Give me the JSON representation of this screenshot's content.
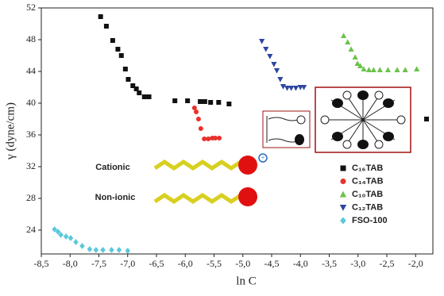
{
  "chart_data": {
    "type": "scatter",
    "xlabel": "ln C",
    "ylabel": "γ (dyne/cm)",
    "xlim": [
      -8.5,
      -1.7
    ],
    "ylim": [
      21,
      52
    ],
    "xticks": [
      {
        "value": -8.5,
        "label": "-8,5"
      },
      {
        "value": -8,
        "label": "-8,0"
      },
      {
        "value": -7.5,
        "label": "-7,5"
      },
      {
        "value": -7,
        "label": "-7,0"
      },
      {
        "value": -6.5,
        "label": "-6,5"
      },
      {
        "value": -6,
        "label": "-6,0"
      },
      {
        "value": -5.5,
        "label": "-5,5"
      },
      {
        "value": -5,
        "label": "-5,0"
      },
      {
        "value": -4.5,
        "label": "-4,5"
      },
      {
        "value": -4,
        "label": "-4,0"
      },
      {
        "value": -3.5,
        "label": "-3,5"
      },
      {
        "value": -3,
        "label": "-3,0"
      },
      {
        "value": -2.5,
        "label": "-2,5"
      },
      {
        "value": -2,
        "label": "-2,0"
      }
    ],
    "yticks": [
      24,
      28,
      32,
      36,
      40,
      44,
      48,
      52
    ],
    "annotations": [
      "Cationic",
      "Non-ionic"
    ],
    "series": [
      {
        "name": "C₁₆TAB",
        "color": "#111111",
        "marker": "square",
        "x": [
          -7.47,
          -7.37,
          -7.26,
          -7.17,
          -7.11,
          -7.04,
          -6.99,
          -6.91,
          -6.85,
          -6.8,
          -6.71,
          -6.63,
          -6.18,
          -5.96,
          -5.74,
          -5.66,
          -5.56,
          -5.42,
          -5.24,
          -1.81
        ],
        "values": [
          50.9,
          49.7,
          47.9,
          46.8,
          46.0,
          44.3,
          43.0,
          42.2,
          41.8,
          41.3,
          40.8,
          40.8,
          40.3,
          40.3,
          40.2,
          40.2,
          40.1,
          40.1,
          39.9,
          38.0
        ]
      },
      {
        "name": "C₁₄TAB",
        "color": "#e8322b",
        "marker": "circle",
        "x": [
          -5.84,
          -5.81,
          -5.77,
          -5.73,
          -5.67,
          -5.6,
          -5.53,
          -5.48,
          -5.41
        ],
        "values": [
          39.4,
          38.9,
          38.0,
          36.8,
          35.5,
          35.5,
          35.6,
          35.6,
          35.6
        ]
      },
      {
        "name": "C₁₀TAB",
        "color": "#6cc24a",
        "marker": "triangle",
        "x": [
          -3.25,
          -3.18,
          -3.12,
          -3.05,
          -3.01,
          -2.96,
          -2.9,
          -2.81,
          -2.73,
          -2.62,
          -2.48,
          -2.32,
          -2.18,
          -1.98
        ],
        "values": [
          48.5,
          47.7,
          46.8,
          45.8,
          45.0,
          44.7,
          44.3,
          44.2,
          44.2,
          44.2,
          44.2,
          44.2,
          44.2,
          44.3
        ]
      },
      {
        "name": "C₁₂TAB",
        "color": "#2c46a0",
        "marker": "triangle-down",
        "x": [
          -4.67,
          -4.6,
          -4.53,
          -4.46,
          -4.41,
          -4.35,
          -4.3,
          -4.23,
          -4.16,
          -4.08,
          -4.0,
          -3.94
        ],
        "values": [
          47.8,
          46.8,
          45.9,
          44.9,
          44.1,
          43.0,
          42.1,
          41.9,
          41.9,
          41.9,
          42.0,
          42.0
        ]
      },
      {
        "name": "FSO-100",
        "color": "#5bc8dc",
        "marker": "diamond",
        "x": [
          -8.27,
          -8.21,
          -8.16,
          -8.07,
          -7.99,
          -7.9,
          -7.79,
          -7.66,
          -7.55,
          -7.43,
          -7.28,
          -7.15,
          -7.0
        ],
        "values": [
          24.1,
          23.8,
          23.4,
          23.2,
          23.0,
          22.5,
          22.0,
          21.6,
          21.5,
          21.5,
          21.5,
          21.5,
          21.4
        ]
      }
    ]
  }
}
